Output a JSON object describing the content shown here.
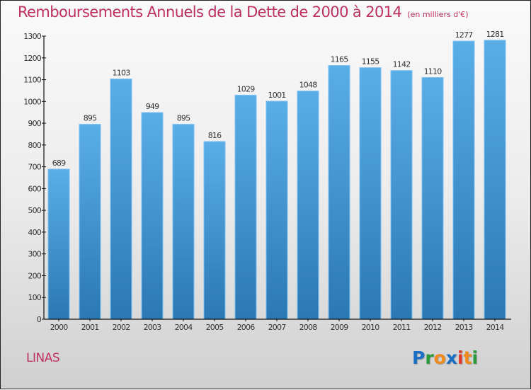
{
  "header": {
    "title": "Remboursements Annuels de la Dette de 2000 à 2014",
    "unit": "(en milliers d'€)"
  },
  "footer": {
    "city": "LINAS",
    "logo": {
      "letters": [
        {
          "char": "P",
          "color": "#1a6fc4"
        },
        {
          "char": "r",
          "color": "#2a9a3a"
        },
        {
          "char": "o",
          "color": "#f08a1c"
        },
        {
          "char": "x",
          "color": "#1a6fc4"
        },
        {
          "char": "i",
          "color": "#e03a2a"
        },
        {
          "char": "t",
          "color": "#f08a1c"
        },
        {
          "char": "i",
          "color": "#2a9a3a"
        }
      ]
    }
  },
  "colors": {
    "bar_top": "#5aaee8",
    "bar_bottom": "#2a78b4",
    "bar_edge": "#7cc0f0",
    "title": "#c0305e",
    "axis": "#111111"
  },
  "chart_data": {
    "type": "bar",
    "title": "Remboursements Annuels de la Dette de 2000 à 2014",
    "subtitle": "(en milliers d'€)",
    "xlabel": "",
    "ylabel": "",
    "categories": [
      "2000",
      "2001",
      "2002",
      "2003",
      "2004",
      "2005",
      "2006",
      "2007",
      "2008",
      "2009",
      "2010",
      "2011",
      "2012",
      "2013",
      "2014"
    ],
    "values": [
      689,
      895,
      1103,
      949,
      895,
      816,
      1029,
      1001,
      1048,
      1165,
      1155,
      1142,
      1110,
      1277,
      1281
    ],
    "ylim": [
      0,
      1300
    ],
    "yticks": [
      0,
      100,
      200,
      300,
      400,
      500,
      600,
      700,
      800,
      900,
      1000,
      1100,
      1200,
      1300
    ],
    "grid": false,
    "legend": "none",
    "data_labels": true
  }
}
